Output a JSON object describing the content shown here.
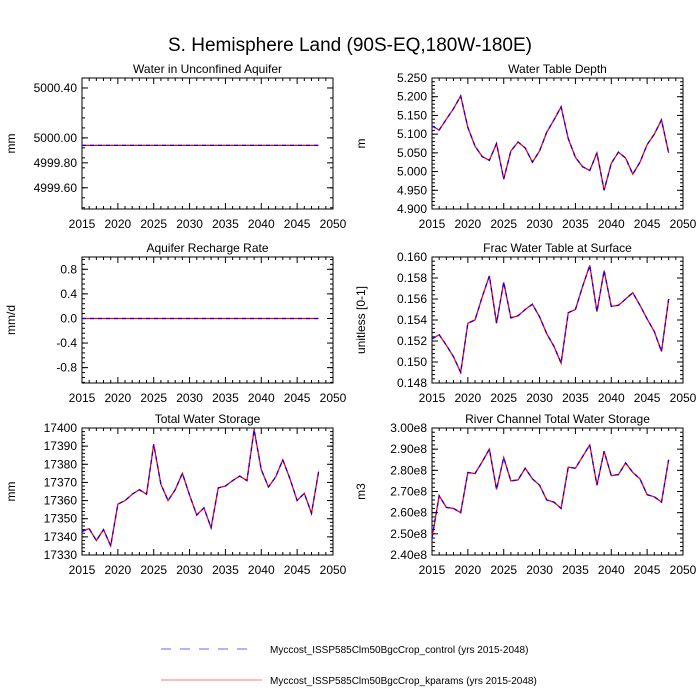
{
  "title": "S. Hemisphere Land (90S-EQ,180W-180E)",
  "legend": [
    {
      "label": "Myccost_ISSP585Clm50BgcCrop_control (yrs 2015-2048)",
      "color": "#0000ff",
      "style": "dashed"
    },
    {
      "label": "Myccost_ISSP585Clm50BgcCrop_kparams (yrs 2015-2048)",
      "color": "#ff0000",
      "style": "solid"
    }
  ],
  "chart_data": [
    {
      "type": "line",
      "title": "Water in Unconfined Aquifer",
      "ylabel": "mm",
      "xlim": [
        2015,
        2050
      ],
      "ylim": [
        4999.43,
        5000.48
      ],
      "xticks": [
        "2015",
        "2020",
        "2025",
        "2030",
        "2035",
        "2040",
        "2045",
        "2050"
      ],
      "yticks": [
        [
          "5000.40",
          5000.4
        ],
        [
          "5000.00",
          5000.0
        ],
        [
          "4999.80",
          4999.8
        ],
        [
          "4999.60",
          4999.6
        ]
      ],
      "x_start": 2015,
      "series": [
        {
          "name": "control",
          "values": [
            4999.94,
            4999.94,
            4999.94,
            4999.94,
            4999.94,
            4999.94,
            4999.94,
            4999.94,
            4999.94,
            4999.94,
            4999.94,
            4999.94,
            4999.94,
            4999.94,
            4999.94,
            4999.94,
            4999.94,
            4999.94,
            4999.94,
            4999.94,
            4999.94,
            4999.94,
            4999.94,
            4999.94,
            4999.94,
            4999.94,
            4999.94,
            4999.94,
            4999.94,
            4999.94,
            4999.94,
            4999.94,
            4999.94,
            4999.94
          ]
        },
        {
          "name": "kparams",
          "values": [
            4999.94,
            4999.94,
            4999.94,
            4999.94,
            4999.94,
            4999.94,
            4999.94,
            4999.94,
            4999.94,
            4999.94,
            4999.94,
            4999.94,
            4999.94,
            4999.94,
            4999.94,
            4999.94,
            4999.94,
            4999.94,
            4999.94,
            4999.94,
            4999.94,
            4999.94,
            4999.94,
            4999.94,
            4999.94,
            4999.94,
            4999.94,
            4999.94,
            4999.94,
            4999.94,
            4999.94,
            4999.94,
            4999.94,
            4999.94
          ]
        }
      ]
    },
    {
      "type": "line",
      "title": "Water Table Depth",
      "ylabel": "m",
      "xlim": [
        2015,
        2050
      ],
      "ylim": [
        4.9,
        5.25
      ],
      "xticks": [
        "2015",
        "2020",
        "2025",
        "2030",
        "2035",
        "2040",
        "2045",
        "2050"
      ],
      "yticks": [
        [
          "5.250",
          5.25
        ],
        [
          "5.200",
          5.2
        ],
        [
          "5.150",
          5.15
        ],
        [
          "5.100",
          5.1
        ],
        [
          "5.050",
          5.05
        ],
        [
          "5.000",
          5.0
        ],
        [
          "4.950",
          4.95
        ],
        [
          "4.900",
          4.9
        ]
      ],
      "x_start": 2015,
      "series": [
        {
          "name": "control",
          "values": [
            5.122,
            5.111,
            5.14,
            5.168,
            5.202,
            5.118,
            5.068,
            5.04,
            5.03,
            5.075,
            4.98,
            5.055,
            5.079,
            5.063,
            5.025,
            5.055,
            5.105,
            5.138,
            5.173,
            5.088,
            5.038,
            5.013,
            5.003,
            5.05,
            4.95,
            5.022,
            5.052,
            5.036,
            4.993,
            5.025,
            5.072,
            5.1,
            5.138,
            5.05
          ]
        },
        {
          "name": "kparams",
          "values": [
            5.122,
            5.111,
            5.14,
            5.168,
            5.202,
            5.118,
            5.068,
            5.04,
            5.03,
            5.075,
            4.98,
            5.055,
            5.079,
            5.063,
            5.025,
            5.055,
            5.105,
            5.138,
            5.173,
            5.088,
            5.038,
            5.013,
            5.003,
            5.05,
            4.95,
            5.022,
            5.052,
            5.036,
            4.993,
            5.025,
            5.072,
            5.1,
            5.138,
            5.05
          ]
        }
      ]
    },
    {
      "type": "line",
      "title": "Aquifer Recharge Rate",
      "ylabel": "mm/d",
      "xlim": [
        2015,
        2050
      ],
      "ylim": [
        -1.05,
        1.0
      ],
      "xticks": [
        "2015",
        "2020",
        "2025",
        "2030",
        "2035",
        "2040",
        "2045",
        "2050"
      ],
      "yticks": [
        [
          "0.8",
          0.8
        ],
        [
          "0.4",
          0.4
        ],
        [
          "0.0",
          0.0
        ],
        [
          "-0.4",
          -0.4
        ],
        [
          "-0.8",
          -0.8
        ]
      ],
      "x_start": 2015,
      "series": [
        {
          "name": "control",
          "values": [
            0,
            0,
            0,
            0,
            0,
            0,
            0,
            0,
            0,
            0,
            0,
            0,
            0,
            0,
            0,
            0,
            0,
            0,
            0,
            0,
            0,
            0,
            0,
            0,
            0,
            0,
            0,
            0,
            0,
            0,
            0,
            0,
            0,
            0
          ]
        },
        {
          "name": "kparams",
          "values": [
            0,
            0,
            0,
            0,
            0,
            0,
            0,
            0,
            0,
            0,
            0,
            0,
            0,
            0,
            0,
            0,
            0,
            0,
            0,
            0,
            0,
            0,
            0,
            0,
            0,
            0,
            0,
            0,
            0,
            0,
            0,
            0,
            0,
            0
          ]
        }
      ]
    },
    {
      "type": "line",
      "title": "Frac Water Table at Surface",
      "ylabel": "unitless [0-1]",
      "xlim": [
        2015,
        2050
      ],
      "ylim": [
        0.148,
        0.16
      ],
      "xticks": [
        "2015",
        "2020",
        "2025",
        "2030",
        "2035",
        "2040",
        "2045",
        "2050"
      ],
      "yticks": [
        [
          "0.160",
          0.16
        ],
        [
          "0.158",
          0.158
        ],
        [
          "0.156",
          0.156
        ],
        [
          "0.154",
          0.154
        ],
        [
          "0.152",
          0.152
        ],
        [
          "0.150",
          0.15
        ],
        [
          "0.148",
          0.148
        ]
      ],
      "x_start": 2015,
      "series": [
        {
          "name": "control",
          "values": [
            0.1522,
            0.1526,
            0.1516,
            0.1505,
            0.149,
            0.1537,
            0.154,
            0.1562,
            0.1582,
            0.1537,
            0.1576,
            0.1542,
            0.1544,
            0.155,
            0.1555,
            0.1543,
            0.1527,
            0.1515,
            0.1499,
            0.1547,
            0.155,
            0.1572,
            0.1592,
            0.1548,
            0.1587,
            0.1553,
            0.1554,
            0.156,
            0.1566,
            0.1554,
            0.1541,
            0.1529,
            0.151,
            0.156
          ]
        },
        {
          "name": "kparams",
          "values": [
            0.1522,
            0.1526,
            0.1516,
            0.1505,
            0.149,
            0.1537,
            0.154,
            0.1562,
            0.1582,
            0.1537,
            0.1576,
            0.1542,
            0.1544,
            0.155,
            0.1555,
            0.1543,
            0.1527,
            0.1515,
            0.1499,
            0.1547,
            0.155,
            0.1572,
            0.1592,
            0.1548,
            0.1587,
            0.1553,
            0.1554,
            0.156,
            0.1566,
            0.1554,
            0.1541,
            0.1529,
            0.151,
            0.156
          ]
        }
      ]
    },
    {
      "type": "line",
      "title": "Total Water Storage",
      "ylabel": "mm",
      "xlim": [
        2015,
        2050
      ],
      "ylim": [
        17330,
        17400
      ],
      "xticks": [
        "2015",
        "2020",
        "2025",
        "2030",
        "2035",
        "2040",
        "2045",
        "2050"
      ],
      "yticks": [
        [
          "17400",
          17400
        ],
        [
          "17390",
          17390
        ],
        [
          "17380",
          17380
        ],
        [
          "17370",
          17370
        ],
        [
          "17360",
          17360
        ],
        [
          "17350",
          17350
        ],
        [
          "17340",
          17340
        ],
        [
          "17330",
          17330
        ]
      ],
      "x_start": 2015,
      "series": [
        {
          "name": "control",
          "values": [
            17343,
            17344.5,
            17338,
            17344,
            17335,
            17358,
            17360,
            17363.5,
            17366,
            17363.5,
            17391,
            17369,
            17360,
            17366,
            17375,
            17363,
            17352,
            17356,
            17345,
            17367,
            17368,
            17371,
            17373.5,
            17371,
            17399,
            17377,
            17367.5,
            17373,
            17382.5,
            17372,
            17360,
            17364,
            17353,
            17376
          ]
        },
        {
          "name": "kparams",
          "values": [
            17343,
            17344.5,
            17338,
            17344,
            17335,
            17358,
            17360,
            17363.5,
            17366,
            17363.5,
            17391,
            17369,
            17360,
            17366,
            17375,
            17363,
            17352,
            17356,
            17345,
            17367,
            17368,
            17371,
            17373.5,
            17371,
            17399,
            17377,
            17367.5,
            17373,
            17382.5,
            17372,
            17360,
            17364,
            17353,
            17376
          ]
        }
      ]
    },
    {
      "type": "line",
      "title": "River Channel Total Water Storage",
      "ylabel": "m3",
      "xlim": [
        2015,
        2050
      ],
      "ylim": [
        240000000.0,
        300000000.0
      ],
      "xticks": [
        "2015",
        "2020",
        "2025",
        "2030",
        "2035",
        "2040",
        "2045",
        "2050"
      ],
      "yticks": [
        [
          "3.00e8",
          300000000.0
        ],
        [
          "2.90e8",
          290000000.0
        ],
        [
          "2.80e8",
          280000000.0
        ],
        [
          "2.70e8",
          270000000.0
        ],
        [
          "2.60e8",
          260000000.0
        ],
        [
          "2.50e8",
          250000000.0
        ],
        [
          "2.40e8",
          240000000.0
        ]
      ],
      "x_start": 2015,
      "series": [
        {
          "name": "control",
          "values": [
            248000000.0,
            268000000.0,
            262500000.0,
            262000000.0,
            260000000.0,
            279000000.0,
            278500000.0,
            284000000.0,
            290000000.0,
            271000000.0,
            286000000.0,
            275000000.0,
            275500000.0,
            281000000.0,
            276000000.0,
            273000000.0,
            266000000.0,
            265000000.0,
            262000000.0,
            281500000.0,
            281000000.0,
            286500000.0,
            292000000.0,
            273000000.0,
            289000000.0,
            277500000.0,
            278000000.0,
            283500000.0,
            279000000.0,
            276000000.0,
            268500000.0,
            267500000.0,
            265000000.0,
            285000000.0
          ]
        },
        {
          "name": "kparams",
          "values": [
            248000000.0,
            268000000.0,
            262500000.0,
            262000000.0,
            260000000.0,
            279000000.0,
            278500000.0,
            284000000.0,
            290000000.0,
            271000000.0,
            286000000.0,
            275000000.0,
            275500000.0,
            281000000.0,
            276000000.0,
            273000000.0,
            266000000.0,
            265000000.0,
            262000000.0,
            281500000.0,
            281000000.0,
            286500000.0,
            292000000.0,
            273000000.0,
            289000000.0,
            277500000.0,
            278000000.0,
            283500000.0,
            279000000.0,
            276000000.0,
            268500000.0,
            267500000.0,
            265000000.0,
            285000000.0
          ]
        }
      ]
    }
  ]
}
